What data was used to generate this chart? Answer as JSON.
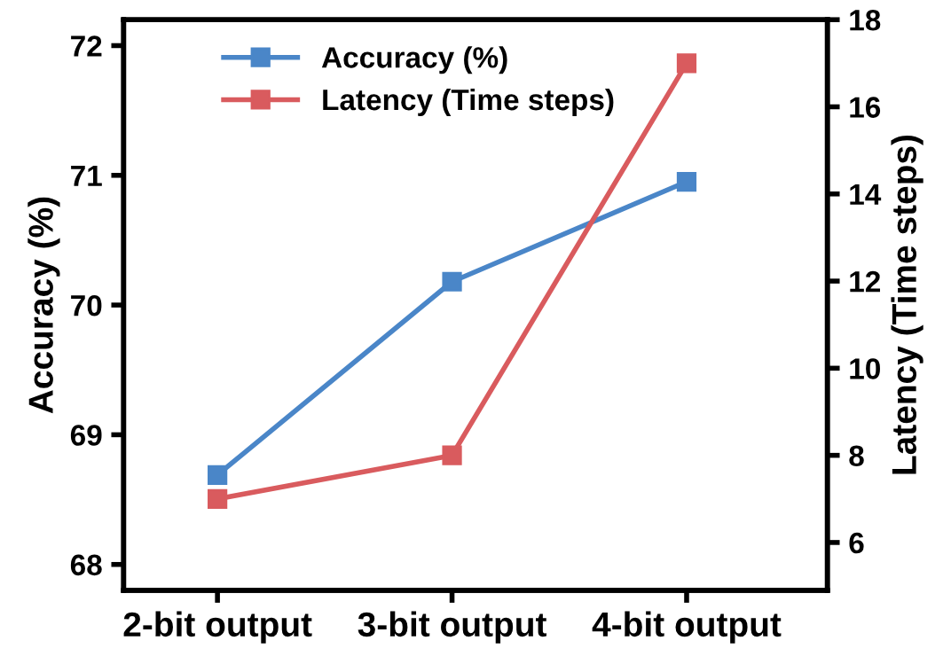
{
  "chart_data": {
    "type": "line",
    "categories": [
      "2-bit output",
      "3-bit output",
      "4-bit output"
    ],
    "ylabel": "Accuracy (%)",
    "y2label": "Latency (Time steps)",
    "series": [
      {
        "name": "Accuracy (%)",
        "color": "#4a86c8",
        "values": [
          68.69,
          70.18,
          70.95
        ]
      },
      {
        "name": "Latency (Time steps)",
        "color": "#d95b5e",
        "values": [
          7,
          8,
          17
        ],
        "axis": "y2"
      }
    ],
    "ylim": [
      67.8,
      72.2
    ],
    "yticks": [
      68,
      69,
      70,
      71,
      72
    ],
    "y2lim": [
      4.9,
      18
    ],
    "y2ticks": [
      6,
      8,
      10,
      12,
      14,
      16,
      18
    ],
    "marker": "square",
    "line_style": "solid",
    "legend": "top",
    "grid": false
  }
}
